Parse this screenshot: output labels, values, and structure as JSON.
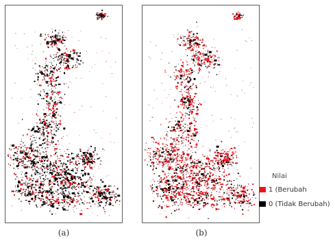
{
  "figure": {
    "panels": [
      {
        "id": "a",
        "label": "(a)",
        "dominant_class": "0"
      },
      {
        "id": "b",
        "label": "(b)",
        "dominant_class": "1"
      }
    ],
    "legend": {
      "title": "Nilai",
      "items": [
        {
          "value": "1",
          "label": "1 (Berubah",
          "color": "#e8141c"
        },
        {
          "value": "0",
          "label": "0 (Tidak Berubah)",
          "color": "#000000"
        }
      ]
    }
  }
}
